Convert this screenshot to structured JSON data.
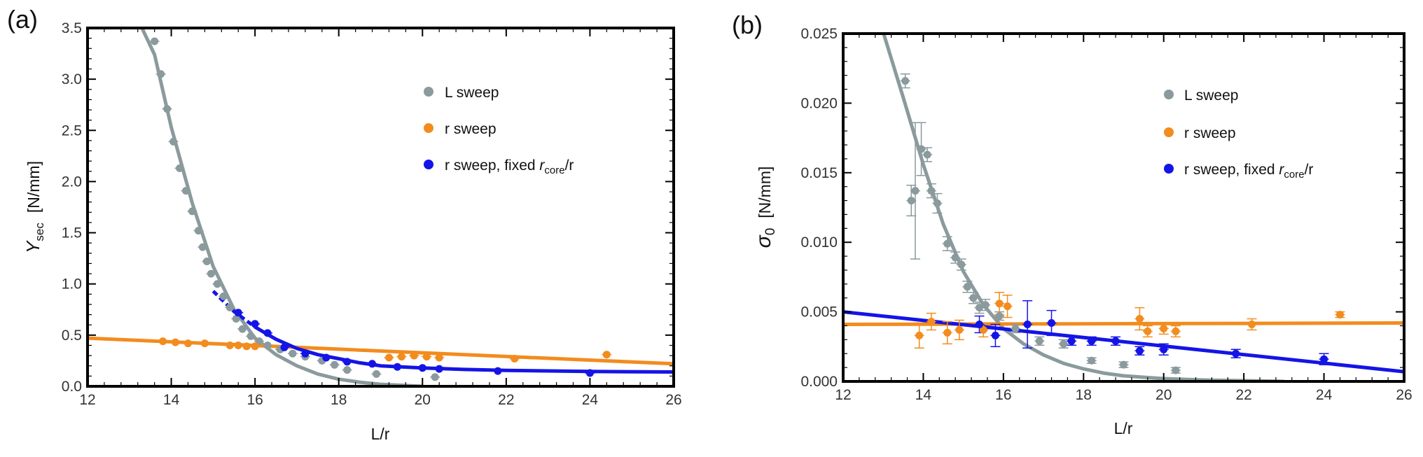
{
  "colors": {
    "gray": "#8a9a9d",
    "orange": "#f28c1e",
    "blue": "#1414e6"
  },
  "chart_data": [
    {
      "panel": "(a)",
      "type": "scatter",
      "xlabel": "L/r",
      "ylabel_main": "Y",
      "ylabel_sub": "sec",
      "ylabel_unit": "[N/mm]",
      "xlim": [
        12,
        26
      ],
      "ylim": [
        0,
        3.5
      ],
      "xticks": [
        "12",
        "14",
        "16",
        "18",
        "20",
        "22",
        "24",
        "26"
      ],
      "yticks": [
        "0.0",
        "0.5",
        "1.0",
        "1.5",
        "2.0",
        "2.5",
        "3.0",
        "3.5"
      ],
      "legend": {
        "position": "upper-right",
        "entries": [
          "L sweep",
          "r sweep",
          "r sweep, fixed "
        ],
        "entry3_italic": "r",
        "entry3_sub": "core",
        "entry3_tail": "/r"
      },
      "series": [
        {
          "name": "L sweep",
          "color": "gray",
          "points": [
            [
              13.6,
              3.37
            ],
            [
              13.75,
              3.05
            ],
            [
              13.9,
              2.71
            ],
            [
              14.05,
              2.39
            ],
            [
              14.2,
              2.13
            ],
            [
              14.35,
              1.91
            ],
            [
              14.5,
              1.71
            ],
            [
              14.65,
              1.52
            ],
            [
              14.75,
              1.36
            ],
            [
              14.85,
              1.22
            ],
            [
              14.95,
              1.1
            ],
            [
              15.1,
              1.0
            ],
            [
              15.25,
              0.88
            ],
            [
              15.4,
              0.77
            ],
            [
              15.55,
              0.66
            ],
            [
              15.7,
              0.56
            ],
            [
              15.9,
              0.49
            ],
            [
              16.1,
              0.44
            ],
            [
              16.3,
              0.4
            ],
            [
              16.6,
              0.36
            ],
            [
              16.9,
              0.32
            ],
            [
              17.2,
              0.29
            ],
            [
              17.6,
              0.25
            ],
            [
              17.9,
              0.21
            ],
            [
              18.2,
              0.16
            ],
            [
              18.9,
              0.12
            ],
            [
              20.3,
              0.09
            ]
          ]
        },
        {
          "name": "r sweep",
          "color": "orange",
          "points": [
            [
              13.8,
              0.44
            ],
            [
              14.1,
              0.43
            ],
            [
              14.4,
              0.42
            ],
            [
              14.8,
              0.42
            ],
            [
              15.4,
              0.4
            ],
            [
              15.6,
              0.4
            ],
            [
              15.8,
              0.39
            ],
            [
              16.0,
              0.39
            ],
            [
              19.2,
              0.28
            ],
            [
              19.5,
              0.29
            ],
            [
              19.8,
              0.3
            ],
            [
              20.1,
              0.29
            ],
            [
              20.4,
              0.28
            ],
            [
              22.2,
              0.27
            ],
            [
              24.4,
              0.31
            ]
          ]
        },
        {
          "name": "r sweep, fixed r_core/r",
          "color": "blue",
          "points": [
            [
              15.6,
              0.72
            ],
            [
              16.0,
              0.61
            ],
            [
              16.3,
              0.52
            ],
            [
              16.7,
              0.38
            ],
            [
              17.2,
              0.32
            ],
            [
              17.7,
              0.28
            ],
            [
              18.2,
              0.24
            ],
            [
              18.8,
              0.22
            ],
            [
              19.4,
              0.19
            ],
            [
              20.0,
              0.18
            ],
            [
              20.4,
              0.17
            ],
            [
              21.8,
              0.15
            ],
            [
              24.0,
              0.13
            ]
          ]
        }
      ],
      "fits": [
        {
          "color": "gray",
          "x": [
            13.3,
            13.6,
            14.0,
            14.5,
            15.0,
            15.5,
            16.0,
            16.5,
            17.0,
            17.5,
            18.0,
            18.5,
            19.0,
            19.5,
            20.0
          ],
          "y": [
            3.5,
            3.24,
            2.53,
            1.79,
            1.17,
            0.75,
            0.47,
            0.31,
            0.2,
            0.12,
            0.07,
            0.04,
            0.02,
            0.01,
            0.0
          ]
        },
        {
          "color": "orange",
          "x": [
            12,
            26
          ],
          "y": [
            0.47,
            0.22
          ]
        },
        {
          "color": "blue",
          "dashed_from": 15.0,
          "x": [
            15.0,
            15.5,
            16.0,
            16.5,
            17.0,
            17.5,
            18.0,
            18.5,
            19.0,
            20.0,
            21.0,
            22.0,
            24.0,
            26.0
          ],
          "y": [
            0.93,
            0.73,
            0.58,
            0.46,
            0.37,
            0.31,
            0.27,
            0.23,
            0.2,
            0.18,
            0.165,
            0.155,
            0.145,
            0.14
          ]
        }
      ]
    },
    {
      "panel": "(b)",
      "type": "scatter",
      "xlabel": "L/r",
      "ylabel_main": "σ",
      "ylabel_sub": "0",
      "ylabel_unit": "[N/mm]",
      "xlim": [
        12,
        26
      ],
      "ylim": [
        0,
        0.025
      ],
      "xticks": [
        "12",
        "14",
        "16",
        "18",
        "20",
        "22",
        "24",
        "26"
      ],
      "yticks": [
        "0.000",
        "0.005",
        "0.010",
        "0.015",
        "0.020",
        "0.025"
      ],
      "legend": {
        "position": "upper-right",
        "entries": [
          "L sweep",
          "r sweep",
          "r sweep, fixed "
        ],
        "entry3_italic": "r",
        "entry3_sub": "core",
        "entry3_tail": "/r"
      },
      "series": [
        {
          "name": "L sweep",
          "color": "gray",
          "points": [
            [
              13.55,
              0.0216,
              0.0005
            ],
            [
              13.7,
              0.013,
              0.0011
            ],
            [
              13.8,
              0.0137,
              0.0049
            ],
            [
              13.95,
              0.0167,
              0.0019
            ],
            [
              14.1,
              0.0163,
              0.0005
            ],
            [
              14.2,
              0.0137,
              0.0005
            ],
            [
              14.35,
              0.0128,
              0.0007
            ],
            [
              14.6,
              0.0099,
              0.0005
            ],
            [
              14.8,
              0.0089,
              0.0004
            ],
            [
              14.95,
              0.0084,
              0.0004
            ],
            [
              15.1,
              0.0068,
              0.0004
            ],
            [
              15.25,
              0.006,
              0.0004
            ],
            [
              15.4,
              0.0053,
              0.0004
            ],
            [
              15.55,
              0.0055,
              0.0004
            ],
            [
              15.9,
              0.0047,
              0.0003
            ],
            [
              16.3,
              0.0038,
              0.0003
            ],
            [
              16.9,
              0.0029,
              0.0003
            ],
            [
              17.5,
              0.0027,
              0.0003
            ],
            [
              18.2,
              0.0015,
              0.0002
            ],
            [
              19.0,
              0.0012,
              0.0002
            ],
            [
              20.3,
              0.0008,
              0.0002
            ]
          ]
        },
        {
          "name": "r sweep",
          "color": "orange",
          "points": [
            [
              13.9,
              0.0033,
              0.0009
            ],
            [
              14.2,
              0.0043,
              0.0006
            ],
            [
              14.6,
              0.0035,
              0.0008
            ],
            [
              14.9,
              0.0037,
              0.0007
            ],
            [
              15.5,
              0.0037,
              0.0005
            ],
            [
              15.9,
              0.0056,
              0.0008
            ],
            [
              16.1,
              0.0054,
              0.0008
            ],
            [
              19.4,
              0.0045,
              0.0008
            ],
            [
              19.6,
              0.0036,
              0.0004
            ],
            [
              20.0,
              0.0038,
              0.0004
            ],
            [
              20.3,
              0.0036,
              0.0004
            ],
            [
              22.2,
              0.0041,
              0.0004
            ],
            [
              24.4,
              0.0048,
              0.0002
            ]
          ]
        },
        {
          "name": "r sweep, fixed r_core/r",
          "color": "blue",
          "points": [
            [
              15.4,
              0.0041,
              0.0006
            ],
            [
              15.8,
              0.0033,
              0.0008
            ],
            [
              16.6,
              0.0041,
              0.0017
            ],
            [
              17.2,
              0.0042,
              0.0009
            ],
            [
              17.7,
              0.0029,
              0.0003
            ],
            [
              18.2,
              0.0029,
              0.0003
            ],
            [
              18.8,
              0.0029,
              0.0003
            ],
            [
              19.4,
              0.0022,
              0.0003
            ],
            [
              20.0,
              0.0023,
              0.0004
            ],
            [
              21.8,
              0.002,
              0.0003
            ],
            [
              24.0,
              0.0016,
              0.0004
            ]
          ]
        }
      ],
      "fits": [
        {
          "color": "gray",
          "x": [
            13.0,
            13.5,
            14.0,
            14.5,
            15.0,
            15.5,
            16.0,
            16.5,
            17.0,
            17.5,
            18.0,
            18.5,
            19.0,
            20.0,
            21.0,
            22.0,
            23.0
          ],
          "y": [
            0.0251,
            0.0204,
            0.0156,
            0.0113,
            0.0079,
            0.0055,
            0.0038,
            0.0027,
            0.0019,
            0.0013,
            0.0009,
            0.0006,
            0.0004,
            0.0002,
            0.0001,
            5e-05,
            0.0
          ]
        },
        {
          "color": "orange",
          "x": [
            12,
            26
          ],
          "y": [
            0.0041,
            0.0042
          ]
        },
        {
          "color": "blue",
          "x": [
            12,
            26
          ],
          "y": [
            0.005,
            0.0007
          ]
        }
      ]
    }
  ]
}
